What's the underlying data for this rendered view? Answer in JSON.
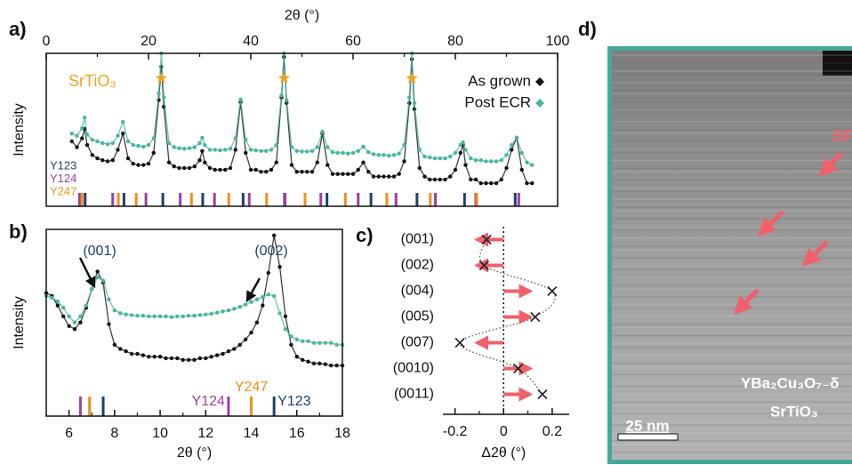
{
  "chart_data": [
    {
      "type": "scatter",
      "panel_label": "a)",
      "x_label": "2θ (°)",
      "y_label": "Intensity",
      "log_y": true,
      "xlim": [
        0,
        100
      ],
      "xticks": [
        0,
        20,
        40,
        60,
        80,
        100
      ],
      "xminor": [
        10,
        30,
        50,
        70,
        90
      ],
      "ylim": [
        1,
        10000
      ],
      "legend": "upper right",
      "x": [
        5,
        6,
        7,
        7.5,
        8,
        9,
        10,
        11,
        12,
        13,
        14,
        15,
        16,
        17,
        18,
        19,
        20,
        21,
        22,
        22.5,
        23,
        24,
        25,
        26,
        27,
        28,
        29,
        30,
        30.5,
        31,
        32,
        33,
        34,
        35,
        36,
        37,
        38,
        39,
        40,
        41,
        42,
        43,
        44,
        45,
        46,
        46.5,
        47,
        48,
        49,
        50,
        51,
        52,
        53,
        54,
        55,
        56,
        57,
        58,
        59,
        60,
        61,
        62,
        63,
        64,
        65,
        66,
        67,
        68,
        69,
        70,
        71,
        71.5,
        72,
        73,
        74,
        75,
        76,
        77,
        78,
        79,
        80,
        81,
        81.5,
        82,
        83,
        84,
        85,
        86,
        87,
        88,
        89,
        90,
        91,
        92,
        93,
        94,
        95
      ],
      "series": [
        {
          "name": "As grown",
          "color": "#111111",
          "values": [
            50,
            35,
            60,
            105,
            40,
            22,
            18,
            16,
            15,
            16,
            30,
            80,
            18,
            13,
            12,
            12,
            13,
            25,
            600,
            4500,
            400,
            14,
            11,
            10,
            10,
            10,
            11,
            16,
            28,
            14,
            10,
            9,
            9,
            9,
            10,
            30,
            530,
            25,
            9,
            9,
            8,
            8,
            9,
            14,
            700,
            8000,
            500,
            12,
            8,
            8,
            8,
            8,
            14,
            80,
            12,
            7,
            7,
            7,
            7,
            7,
            9,
            14,
            8,
            6,
            6,
            6,
            6,
            6,
            7,
            15,
            500,
            7000,
            350,
            10,
            6,
            5,
            5,
            5,
            5,
            6,
            9,
            25,
            40,
            12,
            5,
            5,
            4,
            4,
            4,
            4,
            5,
            10,
            30,
            62,
            9,
            4,
            4
          ]
        },
        {
          "name": "Post ECR",
          "color": "#48b5a0",
          "values": [
            80,
            70,
            110,
            210,
            75,
            55,
            50,
            45,
            42,
            45,
            70,
            160,
            50,
            40,
            38,
            36,
            40,
            60,
            900,
            10000,
            700,
            45,
            35,
            33,
            32,
            33,
            35,
            45,
            62,
            40,
            30,
            30,
            29,
            30,
            32,
            60,
            620,
            55,
            30,
            29,
            28,
            28,
            30,
            40,
            800,
            10000,
            600,
            35,
            28,
            27,
            27,
            28,
            35,
            90,
            35,
            26,
            25,
            25,
            24,
            25,
            28,
            36,
            26,
            23,
            22,
            22,
            21,
            22,
            24,
            40,
            700,
            10000,
            500,
            30,
            20,
            19,
            18,
            18,
            18,
            20,
            25,
            40,
            47,
            30,
            18,
            16,
            16,
            15,
            15,
            15,
            16,
            22,
            40,
            62,
            25,
            14,
            12
          ]
        }
      ],
      "substrate_label": "SrTiO₃",
      "substrate_color": "#f0a020",
      "substrate_peaks": [
        22.5,
        46.5,
        71.5
      ],
      "references": [
        {
          "name": "Y123",
          "color": "#1f3f6e",
          "x": [
            7.6,
            15.2,
            22.8,
            30.6,
            38.5,
            46.6,
            54.9,
            63.5,
            72.5,
            81.8,
            91.7
          ]
        },
        {
          "name": "Y124",
          "color": "#9b3fa0",
          "x": [
            6.5,
            13.0,
            19.5,
            26.2,
            32.9,
            39.7,
            46.7,
            53.7,
            61.0,
            68.4,
            76.1,
            84.0,
            92.4
          ]
        },
        {
          "name": "Y247",
          "color": "#f0901a",
          "x": [
            7.0,
            14.1,
            17.6,
            28.4,
            35.7,
            43.1,
            50.6,
            58.5,
            66.6,
            75.1,
            84.2
          ]
        }
      ]
    },
    {
      "type": "scatter",
      "panel_label": "b)",
      "x_label": "2θ (°)",
      "y_label": "Intensity",
      "log_y": true,
      "xlim": [
        5,
        18
      ],
      "xticks": [
        6,
        8,
        10,
        12,
        14,
        16,
        18
      ],
      "xminor": [
        5,
        7,
        9,
        11,
        13,
        15,
        17
      ],
      "ylim": [
        1,
        1000
      ],
      "x": [
        5,
        5.25,
        5.5,
        5.75,
        6,
        6.25,
        6.5,
        6.75,
        7,
        7.25,
        7.5,
        7.75,
        8,
        8.25,
        8.5,
        8.75,
        9,
        9.25,
        9.5,
        9.75,
        10,
        10.25,
        10.5,
        10.75,
        11,
        11.25,
        11.5,
        11.75,
        12,
        12.25,
        12.5,
        12.75,
        13,
        13.25,
        13.5,
        13.75,
        14,
        14.25,
        14.5,
        14.75,
        15,
        15.25,
        15.5,
        15.75,
        16,
        16.25,
        16.5,
        16.75,
        17,
        17.25,
        17.5,
        17.75,
        18
      ],
      "series": [
        {
          "name": "As grown",
          "color": "#111111",
          "values": [
            95,
            85,
            60,
            40,
            28,
            25,
            32,
            55,
            110,
            210,
            140,
            30,
            14,
            12,
            11,
            10,
            10,
            9.5,
            9,
            9,
            9,
            8.5,
            8.5,
            8.5,
            8,
            8,
            8,
            8.5,
            8.5,
            9,
            9.5,
            10,
            11,
            12,
            14,
            17,
            22,
            32,
            60,
            200,
            800,
            250,
            40,
            14,
            9,
            8,
            7.5,
            7,
            7,
            6.8,
            6.5,
            6.5,
            6.5
          ]
        },
        {
          "name": "Post ECR",
          "color": "#48b5a0",
          "values": [
            85,
            80,
            70,
            55,
            40,
            32,
            40,
            60,
            110,
            170,
            150,
            75,
            50,
            45,
            43,
            42,
            41,
            41,
            40,
            40,
            40,
            40,
            39,
            40,
            40,
            41,
            41,
            42,
            43,
            44,
            46,
            48,
            50,
            53,
            57,
            62,
            68,
            75,
            82,
            90,
            85,
            45,
            25,
            19,
            17,
            16,
            16,
            15,
            15,
            15,
            15,
            14,
            14
          ]
        }
      ],
      "peak_labels": [
        "(001)",
        "(002)"
      ],
      "peak_label_color": "#1f3f6e",
      "references": [
        {
          "name": "Y124",
          "color": "#9b3fa0",
          "x": [
            6.5,
            13.0
          ]
        },
        {
          "name": "Y247",
          "color": "#f0901a",
          "x": [
            6.9,
            14.0
          ]
        },
        {
          "name": "Y123",
          "color": "#1f3f6e",
          "x": [
            7.5,
            15.0
          ]
        }
      ]
    },
    {
      "type": "dot",
      "panel_label": "c)",
      "x_label": "Δ2θ (°)",
      "xlim": [
        -0.25,
        0.27
      ],
      "xticks": [
        -0.2,
        0,
        0.2
      ],
      "xminor": [
        -0.1,
        0.1
      ],
      "zero_line": true,
      "categories": [
        "(001)",
        "(002)",
        "(004)",
        "(005)",
        "(007)",
        "(0010)",
        "(0011)"
      ],
      "values": [
        -0.07,
        -0.08,
        0.2,
        0.13,
        -0.18,
        0.06,
        0.16
      ],
      "color": "#222222",
      "arrow_color": "#f0606a"
    }
  ],
  "panel_d": {
    "label": "d)",
    "stacking_fault": "SF",
    "film": "YBa₂Cu₃O₇₋δ",
    "substrate": "SrTiO₃",
    "scale_bar": "25 nm",
    "border_color": "#45a898",
    "arrow_color": "#f0606a"
  }
}
